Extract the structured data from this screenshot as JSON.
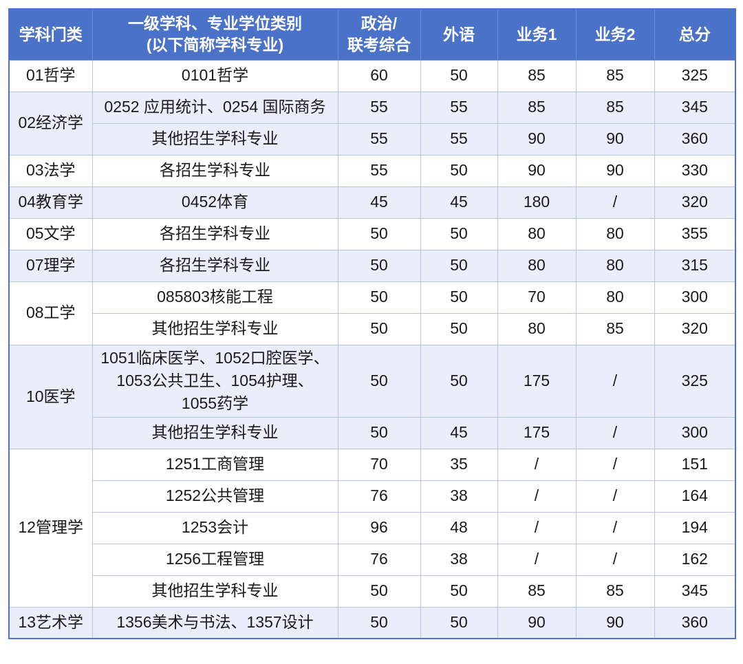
{
  "colors": {
    "header_bg": "#4a72c9",
    "header_text": "#ffffff",
    "band_tint": "#e9eefa",
    "band_white": "#ffffff",
    "grid_border": "#b5c4e9",
    "outer_border": "#4d74c9",
    "body_text": "#1a1a1a"
  },
  "table": {
    "columns": [
      {
        "key": "category",
        "lines": [
          "学科门类"
        ]
      },
      {
        "key": "major",
        "lines": [
          "一级学科、专业学位类别",
          "(以下简称学科专业)"
        ]
      },
      {
        "key": "politics",
        "lines": [
          "政治/",
          "联考综合"
        ]
      },
      {
        "key": "foreign",
        "lines": [
          "外语"
        ]
      },
      {
        "key": "business1",
        "lines": [
          "业务1"
        ]
      },
      {
        "key": "business2",
        "lines": [
          "业务2"
        ]
      },
      {
        "key": "total",
        "lines": [
          "总分"
        ]
      }
    ],
    "groups": [
      {
        "category": "01哲学",
        "band": "white",
        "rows": [
          {
            "major": "0101哲学",
            "politics": "60",
            "foreign": "50",
            "business1": "85",
            "business2": "85",
            "total": "325"
          }
        ]
      },
      {
        "category": "02经济学",
        "band": "tint",
        "rows": [
          {
            "major": "0252 应用统计、0254 国际商务",
            "politics": "55",
            "foreign": "55",
            "business1": "85",
            "business2": "85",
            "total": "345"
          },
          {
            "major": "其他招生学科专业",
            "politics": "55",
            "foreign": "55",
            "business1": "90",
            "business2": "90",
            "total": "360"
          }
        ]
      },
      {
        "category": "03法学",
        "band": "white",
        "rows": [
          {
            "major": "各招生学科专业",
            "politics": "55",
            "foreign": "50",
            "business1": "90",
            "business2": "90",
            "total": "330"
          }
        ]
      },
      {
        "category": "04教育学",
        "band": "tint",
        "rows": [
          {
            "major": "0452体育",
            "politics": "45",
            "foreign": "45",
            "business1": "180",
            "business2": "/",
            "total": "320"
          }
        ]
      },
      {
        "category": "05文学",
        "band": "white",
        "rows": [
          {
            "major": "各招生学科专业",
            "politics": "50",
            "foreign": "50",
            "business1": "80",
            "business2": "80",
            "total": "355"
          }
        ]
      },
      {
        "category": "07理学",
        "band": "tint",
        "rows": [
          {
            "major": "各招生学科专业",
            "politics": "50",
            "foreign": "50",
            "business1": "80",
            "business2": "80",
            "total": "315"
          }
        ]
      },
      {
        "category": "08工学",
        "band": "white",
        "rows": [
          {
            "major": "085803核能工程",
            "politics": "50",
            "foreign": "50",
            "business1": "70",
            "business2": "80",
            "total": "300"
          },
          {
            "major": "其他招生学科专业",
            "politics": "50",
            "foreign": "50",
            "business1": "80",
            "business2": "85",
            "total": "320"
          }
        ]
      },
      {
        "category": "10医学",
        "band": "tint",
        "rows": [
          {
            "major": "1051临床医学、1052口腔医学、\n1053公共卫生、1054护理、\n1055药学",
            "politics": "50",
            "foreign": "50",
            "business1": "175",
            "business2": "/",
            "total": "325"
          },
          {
            "major": "其他招生学科专业",
            "politics": "50",
            "foreign": "45",
            "business1": "175",
            "business2": "/",
            "total": "300"
          }
        ]
      },
      {
        "category": "12管理学",
        "band": "white",
        "rows": [
          {
            "major": "1251工商管理",
            "politics": "70",
            "foreign": "35",
            "business1": "/",
            "business2": "/",
            "total": "151"
          },
          {
            "major": "1252公共管理",
            "politics": "76",
            "foreign": "38",
            "business1": "/",
            "business2": "/",
            "total": "164"
          },
          {
            "major": "1253会计",
            "politics": "96",
            "foreign": "48",
            "business1": "/",
            "business2": "/",
            "total": "194"
          },
          {
            "major": "1256工程管理",
            "politics": "76",
            "foreign": "38",
            "business1": "/",
            "business2": "/",
            "total": "162"
          },
          {
            "major": "其他招生学科专业",
            "politics": "50",
            "foreign": "50",
            "business1": "85",
            "business2": "85",
            "total": "345"
          }
        ]
      },
      {
        "category": "13艺术学",
        "band": "tint",
        "rows": [
          {
            "major": "1356美术与书法、1357设计",
            "politics": "50",
            "foreign": "50",
            "business1": "90",
            "business2": "90",
            "total": "360"
          }
        ]
      }
    ]
  }
}
